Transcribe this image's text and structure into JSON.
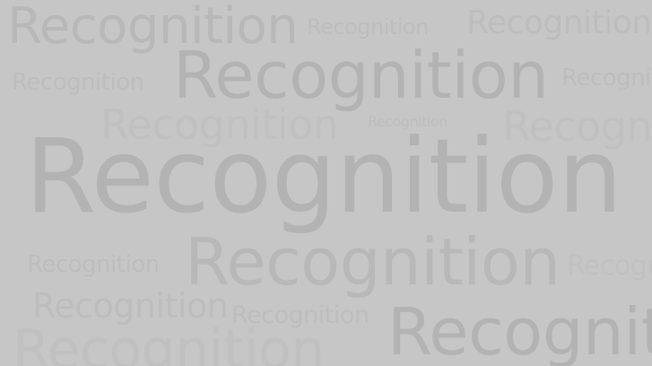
{
  "words": [
    "Recognition",
    "Recognition",
    "Recognition",
    "Recognition",
    "Recognition",
    "Recognition",
    "Recognition",
    "Recognition",
    "Recognition",
    "Recognition",
    "Recognition",
    "Recognition",
    "Recognition",
    "Recognition",
    "Recognition",
    "Recognition",
    "Recognition"
  ],
  "colors": {
    "background": "#c6c6c6",
    "text_dark": "#b3b3b3",
    "text_mid": "#b8b8b8",
    "text_light": "#bdbdbd",
    "text_faint": "#c0c0c0"
  }
}
